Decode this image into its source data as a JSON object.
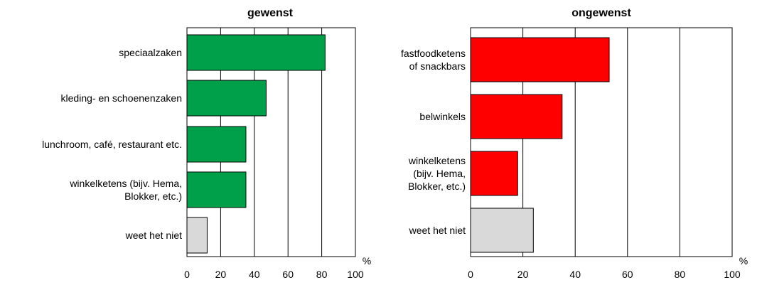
{
  "chart_data": [
    {
      "type": "bar",
      "orientation": "horizontal",
      "title": "gewenst",
      "unit": "%",
      "xlim": [
        0,
        100
      ],
      "ticks": [
        "0",
        "20",
        "40",
        "60",
        "80",
        "100"
      ],
      "grid": true,
      "categories": [
        [
          "speciaalzaken"
        ],
        [
          "kleding- en schoenenzaken"
        ],
        [
          "lunchroom, café, restaurant etc."
        ],
        [
          "winkelketens (bijv. Hema,",
          "Blokker, etc.)"
        ],
        [
          "weet het niet"
        ]
      ],
      "values": [
        82,
        47,
        35,
        35,
        12
      ],
      "colors": [
        "#00a04a",
        "#00a04a",
        "#00a04a",
        "#00a04a",
        "#d9d9d9"
      ]
    },
    {
      "type": "bar",
      "orientation": "horizontal",
      "title": "ongewenst",
      "unit": "%",
      "xlim": [
        0,
        100
      ],
      "ticks": [
        "0",
        "20",
        "40",
        "60",
        "80",
        "100"
      ],
      "grid": true,
      "categories": [
        [
          "fastfoodketens",
          "of snackbars"
        ],
        [
          "belwinkels"
        ],
        [
          "winkelketens",
          "(bijv. Hema,",
          "Blokker, etc.)"
        ],
        [
          "weet het niet"
        ]
      ],
      "values": [
        53,
        35,
        18,
        24
      ],
      "colors": [
        "#ff0000",
        "#ff0000",
        "#ff0000",
        "#d9d9d9"
      ]
    }
  ]
}
